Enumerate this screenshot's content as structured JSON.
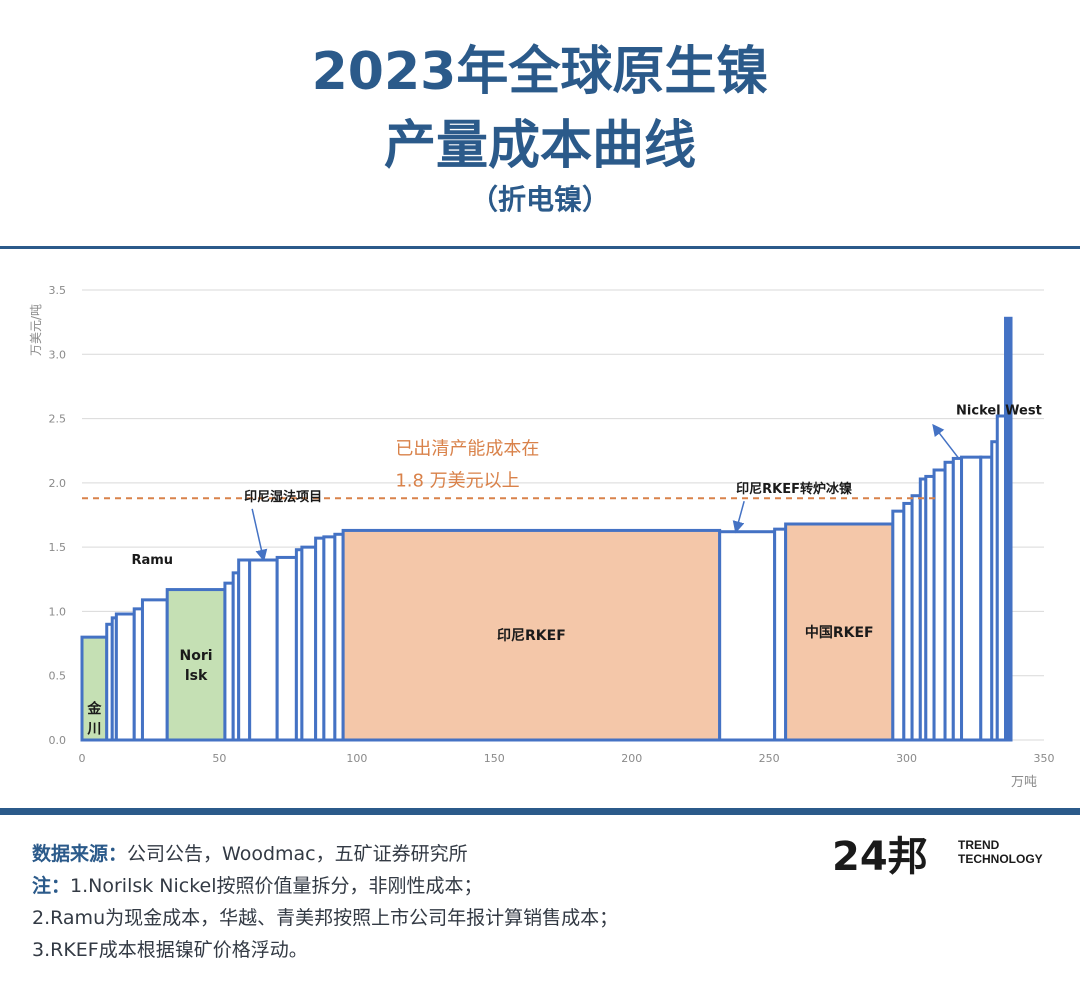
{
  "header": {
    "title_line1": "2023年全球原生镍",
    "title_line2": "产量成本曲线",
    "subtitle": "（折电镍）"
  },
  "footer": {
    "source_label": "数据来源：",
    "source_text": "公司公告，Woodmac，五矿证券研究所",
    "note_label": "注：",
    "note1": "1.Norilsk Nickel按照价值量拆分，非刚性成本；",
    "note2": "2.Ramu为现金成本，华越、青美邦按照上市公司年报计算销售成本；",
    "note3": "3.RKEF成本根据镍矿价格浮动。"
  },
  "logo": {
    "mark": "24邦",
    "line1": "TREND",
    "line2": "TECHNOLOGY"
  },
  "colors": {
    "accent": "#2b5a8a",
    "bar_outline": "#4472c4",
    "green_fill": "#c5e0b4",
    "orange_fill": "#f4c7a9",
    "threshold": "#d9824a"
  },
  "chart_data": {
    "type": "bar",
    "ylabel": "万美元/吨",
    "xlabel": "万吨",
    "xlim": [
      0,
      350
    ],
    "ylim": [
      0,
      3.5
    ],
    "xticks": [
      0,
      50,
      100,
      150,
      200,
      250,
      300,
      350
    ],
    "yticks": [
      0.0,
      0.5,
      1.0,
      1.5,
      2.0,
      2.5,
      3.0,
      3.5
    ],
    "grid": "horizontal",
    "threshold": 1.88,
    "bars": [
      {
        "x0": 0,
        "x1": 9,
        "y": 0.8,
        "fill": "green",
        "label": "金\n川"
      },
      {
        "x0": 9,
        "x1": 11,
        "y": 0.9
      },
      {
        "x0": 11,
        "x1": 12.5,
        "y": 0.95
      },
      {
        "x0": 12.5,
        "x1": 19,
        "y": 0.98
      },
      {
        "x0": 19,
        "x1": 22,
        "y": 1.02
      },
      {
        "x0": 22,
        "x1": 31,
        "y": 1.09
      },
      {
        "x0": 31,
        "x1": 52,
        "y": 1.17,
        "fill": "green",
        "label": "Nori\nlsk"
      },
      {
        "x0": 52,
        "x1": 55,
        "y": 1.22
      },
      {
        "x0": 55,
        "x1": 57,
        "y": 1.3
      },
      {
        "x0": 57,
        "x1": 61,
        "y": 1.4
      },
      {
        "x0": 61,
        "x1": 71,
        "y": 1.4
      },
      {
        "x0": 71,
        "x1": 78,
        "y": 1.42
      },
      {
        "x0": 78,
        "x1": 80,
        "y": 1.48
      },
      {
        "x0": 80,
        "x1": 85,
        "y": 1.5
      },
      {
        "x0": 85,
        "x1": 88,
        "y": 1.57
      },
      {
        "x0": 88,
        "x1": 92,
        "y": 1.58
      },
      {
        "x0": 92,
        "x1": 95,
        "y": 1.6
      },
      {
        "x0": 95,
        "x1": 232,
        "y": 1.63,
        "fill": "orange",
        "label": "印尼RKEF"
      },
      {
        "x0": 232,
        "x1": 252,
        "y": 1.62
      },
      {
        "x0": 252,
        "x1": 256,
        "y": 1.64
      },
      {
        "x0": 256,
        "x1": 295,
        "y": 1.68,
        "fill": "orange",
        "label": "中国RKEF"
      },
      {
        "x0": 295,
        "x1": 299,
        "y": 1.78
      },
      {
        "x0": 299,
        "x1": 302,
        "y": 1.84
      },
      {
        "x0": 302,
        "x1": 305,
        "y": 1.9
      },
      {
        "x0": 305,
        "x1": 307,
        "y": 2.03
      },
      {
        "x0": 307,
        "x1": 310,
        "y": 2.05
      },
      {
        "x0": 310,
        "x1": 314,
        "y": 2.1
      },
      {
        "x0": 314,
        "x1": 317,
        "y": 2.16
      },
      {
        "x0": 317,
        "x1": 320,
        "y": 2.19
      },
      {
        "x0": 320,
        "x1": 327,
        "y": 2.2
      },
      {
        "x0": 327,
        "x1": 331,
        "y": 2.2
      },
      {
        "x0": 331,
        "x1": 333,
        "y": 2.32
      },
      {
        "x0": 333,
        "x1": 336,
        "y": 2.52
      },
      {
        "x0": 336,
        "x1": 338,
        "y": 3.28,
        "solid": true
      }
    ],
    "annotations": [
      {
        "text": "Ramu",
        "x": 18,
        "y": 1.37,
        "bold": true,
        "color": "#1a1a1a"
      },
      {
        "text": "印尼湿法项目",
        "x": 59,
        "y": 1.86,
        "bold": true,
        "color": "#1a1a1a",
        "arrow_to": [
          66,
          1.41
        ]
      },
      {
        "text": "已出清产能成本在",
        "x": 114,
        "y": 2.22,
        "bold": false,
        "color": "#d9824a",
        "size": 18
      },
      {
        "text": "1.8 万美元以上",
        "x": 114,
        "y": 1.97,
        "bold": false,
        "color": "#d9824a",
        "size": 18
      },
      {
        "text": "印尼RKEF转炉冰镍",
        "x": 238,
        "y": 1.92,
        "bold": true,
        "color": "#1a1a1a",
        "arrow_to": [
          238,
          1.63
        ]
      },
      {
        "text": "Nickel West",
        "x": 318,
        "y": 2.53,
        "bold": true,
        "color": "#1a1a1a",
        "arrow_to": [
          310,
          2.44
        ],
        "arrow_from": [
          319,
          2.19
        ]
      }
    ]
  }
}
